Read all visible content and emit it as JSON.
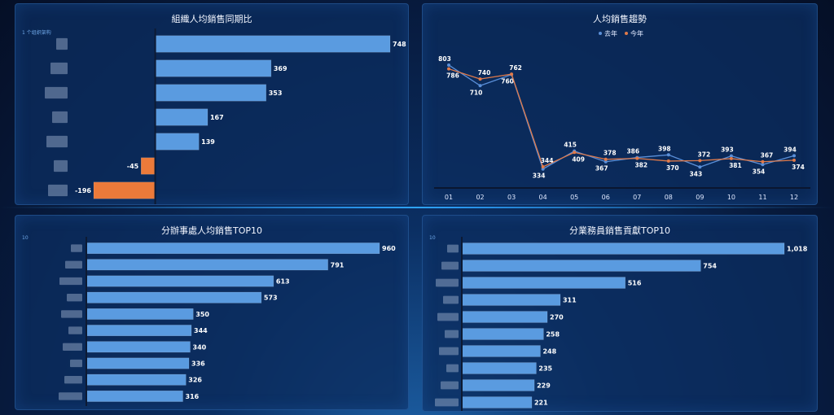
{
  "charts": {
    "org": {
      "title": "組織人均銷售同期比",
      "tag": "1 个组织架构",
      "type": "bar",
      "values": [
        748,
        369,
        353,
        167,
        139,
        -45,
        -196
      ],
      "colors": {
        "positive": "#5a9be0",
        "negative": "#ec7a3a"
      }
    },
    "trend": {
      "title": "人均銷售趨勢",
      "type": "line",
      "categories": [
        "01",
        "02",
        "03",
        "04",
        "05",
        "06",
        "07",
        "08",
        "09",
        "10",
        "11",
        "12"
      ],
      "series": [
        {
          "name": "去年",
          "values": [
            803,
            710,
            760,
            334,
            415,
            367,
            386,
            398,
            343,
            393,
            354,
            394
          ],
          "color": "#5a8fd8"
        },
        {
          "name": "今年",
          "values": [
            786,
            740,
            762,
            344,
            409,
            378,
            382,
            370,
            372,
            381,
            367,
            374
          ],
          "color": "#e07a4a"
        }
      ]
    },
    "office": {
      "title": "分辦事處人均銷售TOP10",
      "tag": "10",
      "type": "bar",
      "values": [
        960,
        791,
        613,
        573,
        350,
        344,
        340,
        336,
        326,
        316
      ],
      "colors": {
        "positive": "#5a9be0"
      }
    },
    "sales": {
      "title": "分業務員銷售貢獻TOP10",
      "tag": "10",
      "type": "bar",
      "values": [
        1018,
        754,
        516,
        311,
        270,
        258,
        248,
        235,
        229,
        221
      ],
      "value_labels": [
        "1,018",
        "754",
        "516",
        "311",
        "270",
        "258",
        "248",
        "235",
        "229",
        "221"
      ],
      "colors": {
        "positive": "#5a9be0"
      }
    }
  }
}
